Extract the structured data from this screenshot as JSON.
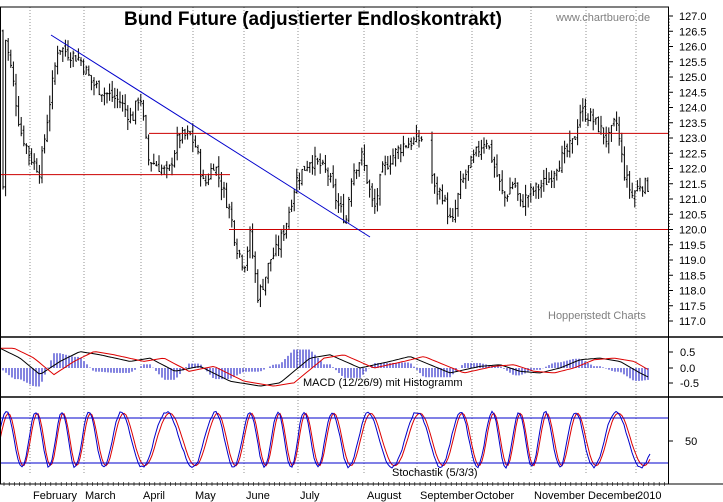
{
  "chart_data": [
    {
      "type": "candlestick",
      "title": "Bund Future (adjustierter Endloskontrakt)",
      "watermark_top": "www.chartbuero.de",
      "watermark_bottom": "Hoppenstedt Charts",
      "ylim": [
        117.0,
        127.0
      ],
      "y_ticks": [
        "127.0",
        "126.5",
        "126.0",
        "125.5",
        "125.0",
        "124.5",
        "124.0",
        "123.5",
        "123.0",
        "122.5",
        "122.0",
        "121.5",
        "121.0",
        "120.5",
        "120.0",
        "119.5",
        "119.0",
        "118.5",
        "118.0",
        "117.5",
        "117.0"
      ],
      "x_labels": [
        "February",
        "March",
        "April",
        "May",
        "June",
        "July",
        "August",
        "September",
        "October",
        "November",
        "December",
        "2010"
      ],
      "horizontal_lines": [
        {
          "value": 121.8,
          "from": "January",
          "to": "April"
        },
        {
          "value": 123.15,
          "from": "April",
          "to": "December"
        },
        {
          "value": 120.0,
          "from": "May",
          "to": "December"
        }
      ],
      "trendline": {
        "from_month": "January",
        "from_value": 126.4,
        "to_month": "August",
        "to_value": 119.75
      },
      "colors": {
        "candles": "#000000",
        "support_resistance": "#cc0000",
        "trendline": "#0000cc",
        "grid": "#808080"
      },
      "grid": true
    },
    {
      "type": "line",
      "title": "MACD (12/26/9) mit Histogramm",
      "y_ticks": [
        "0.5",
        "0.0",
        "-0.5"
      ],
      "series": [],
      "colors": {
        "macd": "#000000",
        "signal": "#dd0000",
        "histogram": "#3333cc"
      }
    },
    {
      "type": "line",
      "title": "Stochastik (5/3/3)",
      "y_ticks": [
        "50"
      ],
      "reference_lines": [
        80,
        20
      ],
      "colors": {
        "k": "#0000cc",
        "d": "#dd0000"
      }
    }
  ]
}
